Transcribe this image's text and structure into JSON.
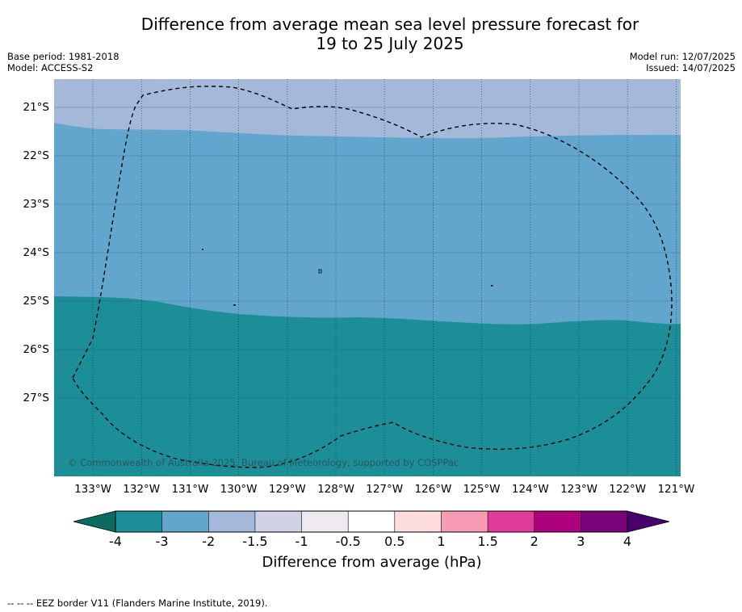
{
  "title": {
    "line1": "Difference from average mean sea level pressure forecast for",
    "line2": "19 to 25 July 2025"
  },
  "meta_left": {
    "base_period": "Base period: 1981-2018",
    "model": "Model: ACCESS-S2"
  },
  "meta_right": {
    "model_run": "Model run: 12/07/2025",
    "issued": "Issued: 14/07/2025"
  },
  "map": {
    "latitude_labels": [
      "21°S",
      "22°S",
      "23°S",
      "24°S",
      "25°S",
      "26°S",
      "27°S"
    ],
    "longitude_labels": [
      "133°W",
      "132°W",
      "131°W",
      "130°W",
      "129°W",
      "128°W",
      "127°W",
      "126°W",
      "125°W",
      "124°W",
      "123°W",
      "122°W",
      "121°W"
    ],
    "zones": [
      {
        "range": "-2 to -1.5",
        "color": "#a4b8da"
      },
      {
        "range": "-3 to -2",
        "color": "#63a6cd"
      },
      {
        "range": "-4 to -3",
        "color": "#1c8e98"
      }
    ],
    "copyright": "© Commonwealth of Australia 2025, Bureau of Meteorology, supported by COSPPac",
    "eez_style": "dashed"
  },
  "colorbar": {
    "tick_labels": [
      "-4",
      "-3",
      "-2",
      "-1.5",
      "-1",
      "-0.5",
      "0.5",
      "1",
      "1.5",
      "2",
      "3",
      "4"
    ],
    "colors": [
      "#1c8e98",
      "#63a6cd",
      "#a4b8da",
      "#d0d2e6",
      "#efe9f2",
      "#ffffff",
      "#fddcdc",
      "#f89bb5",
      "#de3b9a",
      "#ae017e",
      "#7a0177"
    ],
    "under_color": "#0b6b61",
    "over_color": "#49006a",
    "label": "Difference from average (hPa)"
  },
  "footnote": "--  --  -- EEZ border V11 (Flanders Marine Institute, 2019)."
}
